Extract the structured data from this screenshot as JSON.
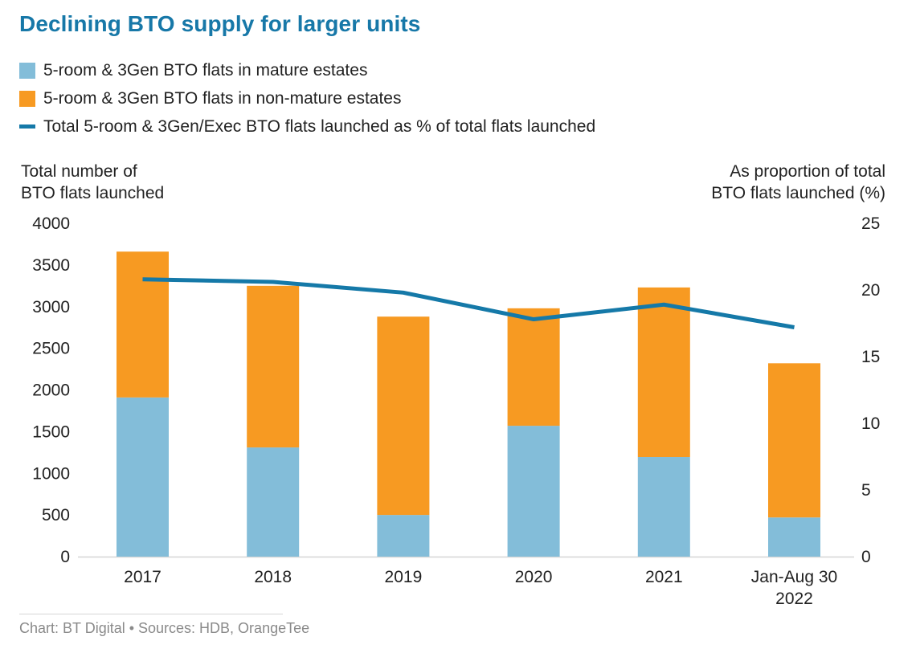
{
  "title": "Declining BTO supply for larger units",
  "footer": "Chart: BT Digital • Sources: HDB, OrangeTee",
  "colors": {
    "title": "#1778a8",
    "mature": "#83bdd9",
    "non_mature": "#f79a22",
    "line": "#1579a8",
    "baseline": "#d6d6d6"
  },
  "legend": [
    {
      "label": "5-room & 3Gen BTO flats in mature estates",
      "type": "box",
      "color": "#83bdd9"
    },
    {
      "label": "5-room & 3Gen BTO flats in non-mature estates",
      "type": "box",
      "color": "#f79a22"
    },
    {
      "label": "Total 5-room & 3Gen/Exec BTO flats launched as % of total flats launched",
      "type": "line",
      "color": "#1579a8"
    }
  ],
  "chart_data": {
    "type": "bar",
    "stacked": true,
    "title": "Declining BTO supply for larger units",
    "categories": [
      "2017",
      "2018",
      "2019",
      "2020",
      "2021",
      "Jan-Aug 30\n2022"
    ],
    "category_lines": [
      [
        "2017"
      ],
      [
        "2018"
      ],
      [
        "2019"
      ],
      [
        "2020"
      ],
      [
        "2021"
      ],
      [
        "Jan-Aug 30",
        "2022"
      ]
    ],
    "series": [
      {
        "name": "5-room & 3Gen BTO flats in mature estates",
        "type": "bar",
        "axis": "left",
        "values": [
          1910,
          1310,
          500,
          1570,
          1195,
          470
        ]
      },
      {
        "name": "5-room & 3Gen BTO flats in non-mature estates",
        "type": "bar",
        "axis": "left",
        "values": [
          1750,
          1940,
          2380,
          1410,
          2035,
          1850
        ]
      },
      {
        "name": "Total 5-room & 3Gen/Exec BTO flats launched as % of total flats launched",
        "type": "line",
        "axis": "right",
        "values": [
          20.8,
          20.6,
          19.8,
          17.8,
          18.9,
          17.2
        ]
      }
    ],
    "ylabel": "Total number of\nBTO flats launched",
    "ylabel_lines": [
      "Total number of",
      "BTO flats launched"
    ],
    "ylim": [
      0,
      4000
    ],
    "yticks": [
      0,
      500,
      1000,
      1500,
      2000,
      2500,
      3000,
      3500,
      4000
    ],
    "y2label": "As proportion of total\nBTO flats launched (%)",
    "y2label_lines": [
      "As proportion of total",
      "BTO flats launched (%)"
    ],
    "y2lim": [
      0,
      25
    ],
    "y2ticks": [
      0,
      5,
      10,
      15,
      20,
      25
    ],
    "xlabel": "",
    "grid": false,
    "legend_position": "top-left"
  }
}
